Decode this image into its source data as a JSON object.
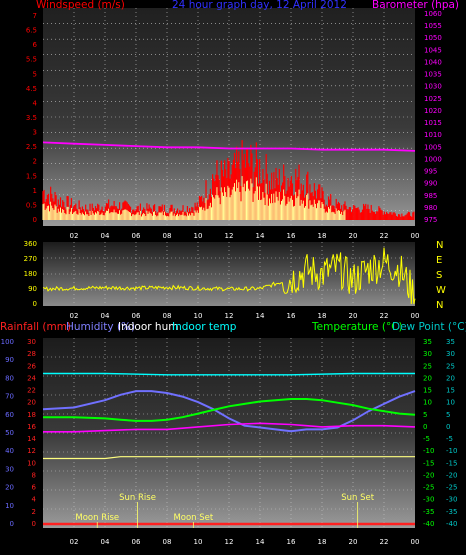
{
  "colors": {
    "wind": "#ff0000",
    "gust": "#ff3b3b",
    "wind_avg": "#ffff99",
    "baro": "#ff00ff",
    "direction": "#ffff00",
    "rain": "#ff2020",
    "humidity": "#8080ff",
    "indoor_hum": "#ffffff",
    "indoor_temp": "#00ffff",
    "temperature": "#00ff00",
    "dew_point": "#ff00ff",
    "outdoor_hum": "#7070ff",
    "grid": "#c8c8c8",
    "axis_rain": "#ff2020",
    "axis_hum": "#6a6aff",
    "axis_temp": "#00ff00",
    "axis_dew": "#00c8c8"
  },
  "header": {
    "wind_title": "Windspeed (m/s)",
    "graph_title": "24 hour graph day,  12 April 2012",
    "baro_title": "Barometer (hpa)"
  },
  "time_axis": {
    "ticks": [
      "02",
      "04",
      "06",
      "08",
      "10",
      "12",
      "14",
      "16",
      "18",
      "20",
      "22",
      "00"
    ]
  },
  "chart_data": [
    {
      "type": "line",
      "id": "wind_baro",
      "series": [
        {
          "name": "Windspeed (m/s)",
          "axis": "left",
          "style": "bars",
          "x": [
            0,
            1,
            2,
            3,
            4,
            5,
            6,
            7,
            8,
            9,
            10,
            11,
            12,
            13,
            14,
            15,
            16,
            17,
            18,
            19,
            20,
            21,
            22,
            23,
            24
          ],
          "values": [
            1.0,
            0.7,
            0.5,
            0.4,
            0.5,
            0.5,
            0.4,
            0.4,
            0.4,
            0.4,
            0.5,
            1.5,
            1.5,
            2.0,
            1.8,
            1.3,
            1.5,
            1.3,
            0.8,
            0.5,
            0.4,
            0.4,
            0.3,
            0.2,
            0.2
          ]
        },
        {
          "name": "Barometer (hpa)",
          "axis": "right",
          "x": [
            0,
            2,
            4,
            6,
            8,
            10,
            12,
            14,
            16,
            18,
            20,
            22,
            24
          ],
          "values": [
            1007,
            1006.5,
            1006,
            1005.5,
            1005,
            1005,
            1004.5,
            1004.5,
            1004.5,
            1004,
            1004,
            1004,
            1003.5
          ]
        }
      ],
      "ylim_left": [
        0,
        7
      ],
      "yticks_left": [
        "0",
        "0.5",
        "1",
        "1.5",
        "2",
        "2.5",
        "3",
        "3.5",
        "4",
        "4.5",
        "5",
        "5.5",
        "6",
        "6.5",
        "7"
      ],
      "ylim_right": [
        975,
        1060
      ],
      "yticks_right": [
        "975",
        "980",
        "985",
        "990",
        "995",
        "1000",
        "1005",
        "1010",
        "1015",
        "1020",
        "1025",
        "1030",
        "1035",
        "1040",
        "1045",
        "1050",
        "1055",
        "1060"
      ]
    },
    {
      "type": "line",
      "id": "direction",
      "series": [
        {
          "name": "Wind direction",
          "x": [
            0,
            2,
            4,
            6,
            8,
            10,
            12,
            14,
            16,
            17,
            18,
            19,
            20,
            21,
            22,
            23,
            24
          ],
          "values": [
            90,
            95,
            98,
            95,
            100,
            95,
            90,
            92,
            150,
            200,
            180,
            220,
            140,
            210,
            250,
            210,
            50
          ]
        }
      ],
      "ylim": [
        0,
        360
      ],
      "yticks": [
        "0",
        "90",
        "180",
        "270",
        "360"
      ],
      "compass": [
        "N",
        "W",
        "S",
        "E",
        "N"
      ]
    },
    {
      "type": "line",
      "id": "temp_hum",
      "left_labels": {
        "rain": "Rainfall (mm)",
        "humidity": "Humidity (%)",
        "indoor_hum": "Indoor hum",
        "indoor_temp": "Indoor temp"
      },
      "right_labels": {
        "temperature": "Temperature (°C)",
        "dew_point": "Dew Point (°C)"
      },
      "series": [
        {
          "name": "Indoor temp",
          "axis": "temp",
          "x": [
            0,
            4,
            8,
            12,
            16,
            20,
            24
          ],
          "values": [
            22,
            22,
            21.5,
            21.5,
            21.5,
            22,
            22
          ]
        },
        {
          "name": "Humidity (%)",
          "axis": "hum",
          "x": [
            0,
            2,
            4,
            5,
            6,
            7,
            8,
            9,
            10,
            11,
            12,
            13,
            14,
            15,
            16,
            17,
            18,
            19,
            20,
            21,
            22,
            23,
            24
          ],
          "values": [
            63,
            64,
            68,
            71,
            73,
            73,
            72,
            70,
            67,
            63,
            58,
            54,
            53,
            52,
            51,
            52,
            52,
            53,
            57,
            62,
            66,
            70,
            73
          ]
        },
        {
          "name": "Temperature (°C)",
          "axis": "temp",
          "x": [
            0,
            2,
            4,
            5,
            6,
            7,
            8,
            9,
            10,
            11,
            12,
            13,
            14,
            15,
            16,
            17,
            18,
            19,
            20,
            21,
            22,
            23,
            24
          ],
          "values": [
            4,
            4,
            3.5,
            3,
            2.5,
            2.5,
            3,
            4,
            5.5,
            7,
            8.5,
            9.5,
            10.5,
            11,
            11.5,
            11.5,
            11,
            10,
            9,
            7.5,
            6.5,
            5.5,
            5
          ]
        },
        {
          "name": "Dew Point (°C)",
          "axis": "temp",
          "x": [
            0,
            2,
            4,
            6,
            8,
            10,
            12,
            14,
            16,
            17,
            18,
            20,
            22,
            24
          ],
          "values": [
            -2,
            -2,
            -1.5,
            -1,
            -1,
            0,
            1,
            1.5,
            1,
            0.5,
            0,
            0.5,
            0.5,
            0
          ]
        },
        {
          "name": "Indoor hum",
          "axis": "hum",
          "x": [
            0,
            4,
            5,
            7,
            9,
            12,
            14,
            16,
            19,
            22,
            24
          ],
          "values": [
            36,
            36,
            37,
            37,
            37,
            37,
            37,
            37,
            37,
            37,
            37
          ]
        },
        {
          "name": "Rainfall (mm)",
          "axis": "rain",
          "x": [
            0,
            24
          ],
          "values": [
            0,
            0
          ]
        }
      ],
      "ylim_hum": [
        0,
        100
      ],
      "yticks_hum": [
        "0",
        "10",
        "20",
        "30",
        "40",
        "50",
        "60",
        "70",
        "80",
        "90",
        "100"
      ],
      "ylim_rain": [
        0,
        30
      ],
      "yticks_rain": [
        "0",
        "2",
        "4",
        "6",
        "8",
        "10",
        "12",
        "14",
        "16",
        "18",
        "20",
        "22",
        "24",
        "26",
        "28",
        "30"
      ],
      "ylim_temp": [
        -40,
        35
      ],
      "yticks_temp": [
        "-40",
        "-35",
        "-30",
        "-25",
        "-20",
        "-15",
        "-10",
        "-5",
        "0",
        "5",
        "10",
        "15",
        "20",
        "25",
        "30",
        "35"
      ],
      "yticks_dew": [
        "-40",
        "-35",
        "-30",
        "-25",
        "-20",
        "-15",
        "-10",
        "-5",
        "0",
        "5",
        "10",
        "15",
        "20",
        "25",
        "30",
        "35"
      ],
      "events": [
        {
          "label": "Moon Rise",
          "x": 3.5,
          "row": "low"
        },
        {
          "label": "Sun Rise",
          "x": 6.1,
          "row": "high"
        },
        {
          "label": "Moon Set",
          "x": 9.7,
          "row": "low"
        },
        {
          "label": "Sun Set",
          "x": 20.3,
          "row": "high"
        }
      ]
    }
  ]
}
